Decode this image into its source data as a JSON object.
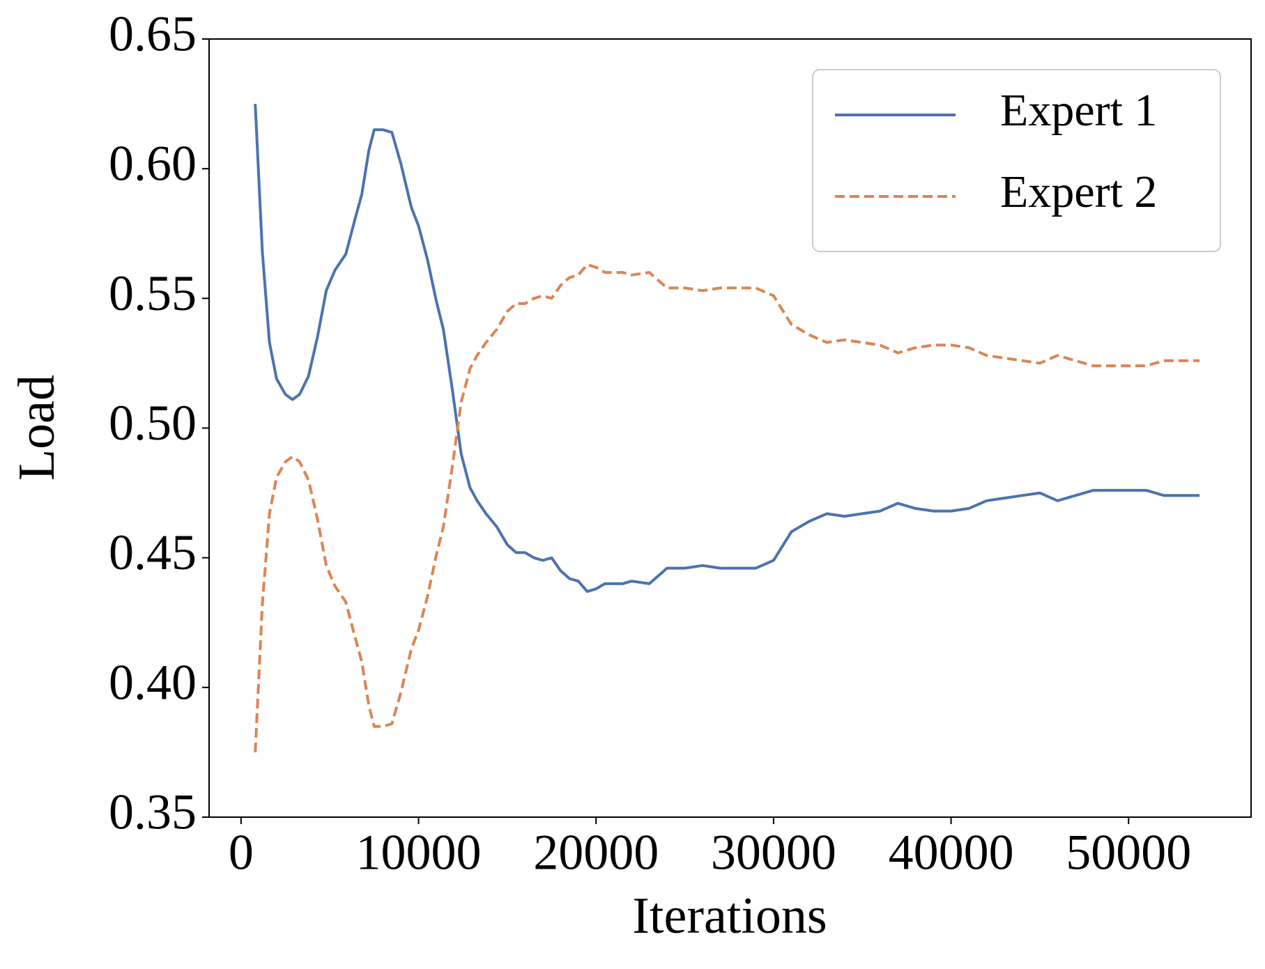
{
  "chart_data": {
    "type": "line",
    "xlabel": "Iterations",
    "ylabel": "Load",
    "x": [
      800,
      1200,
      1600,
      2000,
      2500,
      2900,
      3300,
      3800,
      4300,
      4800,
      5300,
      5900,
      6400,
      6800,
      7200,
      7500,
      8000,
      8500,
      9000,
      9600,
      10000,
      10500,
      11000,
      11400,
      11900,
      12400,
      12900,
      13300,
      13800,
      14400,
      15000,
      15500,
      16000,
      16500,
      17000,
      17500,
      18000,
      18500,
      19000,
      19500,
      20000,
      20500,
      21000,
      21500,
      22000,
      23000,
      24000,
      25000,
      26000,
      27000,
      28000,
      29000,
      30000,
      31000,
      32000,
      33000,
      34000,
      35000,
      36000,
      37000,
      38000,
      39000,
      40000,
      41000,
      42000,
      43000,
      44000,
      45000,
      46000,
      47000,
      48000,
      49000,
      50000,
      51000,
      52000,
      53000,
      54000
    ],
    "series": [
      {
        "name": "Expert 1",
        "color": "#4c72b0",
        "dash": false,
        "values": [
          0.625,
          0.568,
          0.533,
          0.519,
          0.513,
          0.511,
          0.513,
          0.52,
          0.535,
          0.553,
          0.561,
          0.567,
          0.58,
          0.59,
          0.607,
          0.615,
          0.615,
          0.614,
          0.602,
          0.585,
          0.578,
          0.565,
          0.549,
          0.538,
          0.515,
          0.49,
          0.477,
          0.472,
          0.467,
          0.462,
          0.455,
          0.452,
          0.452,
          0.45,
          0.449,
          0.45,
          0.445,
          0.442,
          0.441,
          0.437,
          0.438,
          0.44,
          0.44,
          0.44,
          0.441,
          0.44,
          0.446,
          0.446,
          0.447,
          0.446,
          0.446,
          0.446,
          0.449,
          0.46,
          0.464,
          0.467,
          0.466,
          0.467,
          0.468,
          0.471,
          0.469,
          0.468,
          0.468,
          0.469,
          0.472,
          0.473,
          0.474,
          0.475,
          0.472,
          0.474,
          0.476,
          0.476,
          0.476,
          0.476,
          0.474,
          0.474,
          0.474
        ]
      },
      {
        "name": "Expert 2",
        "color": "#dd8452",
        "dash": true,
        "values": [
          0.375,
          0.432,
          0.467,
          0.481,
          0.487,
          0.489,
          0.487,
          0.48,
          0.465,
          0.447,
          0.439,
          0.433,
          0.42,
          0.41,
          0.393,
          0.385,
          0.385,
          0.386,
          0.398,
          0.415,
          0.422,
          0.435,
          0.451,
          0.462,
          0.485,
          0.51,
          0.523,
          0.528,
          0.533,
          0.538,
          0.545,
          0.548,
          0.548,
          0.55,
          0.551,
          0.55,
          0.555,
          0.558,
          0.559,
          0.563,
          0.562,
          0.56,
          0.56,
          0.56,
          0.559,
          0.56,
          0.554,
          0.554,
          0.553,
          0.554,
          0.554,
          0.554,
          0.551,
          0.54,
          0.536,
          0.533,
          0.534,
          0.533,
          0.532,
          0.529,
          0.531,
          0.532,
          0.532,
          0.531,
          0.528,
          0.527,
          0.526,
          0.525,
          0.528,
          0.526,
          0.524,
          0.524,
          0.524,
          0.524,
          0.526,
          0.526,
          0.526
        ]
      }
    ],
    "xlim": [
      -1800,
      56900
    ],
    "ylim": [
      0.35,
      0.65
    ],
    "xticks": [
      0,
      10000,
      20000,
      30000,
      40000,
      50000
    ],
    "yticks": [
      0.35,
      {
        "value": 0.4,
        "label": "0.40"
      },
      0.45,
      {
        "value": 0.5,
        "label": "0.50"
      },
      0.55,
      {
        "value": 0.6,
        "label": "0.60"
      },
      0.65
    ],
    "legend": "upper right",
    "grid": false
  }
}
